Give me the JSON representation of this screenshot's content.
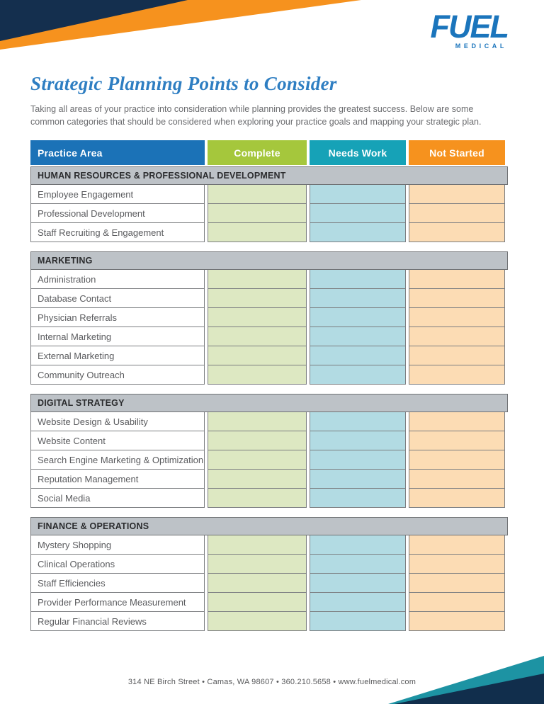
{
  "brand": {
    "logo_text": "FUEL",
    "logo_subtext": "MEDICAL"
  },
  "page": {
    "title": "Strategic Planning Points to Consider",
    "intro": "Taking all areas of your practice into consideration while planning provides the greatest success. Below are some common categories that should be considered when exploring your practice goals and mapping your strategic plan."
  },
  "table": {
    "columns": [
      "Practice Area",
      "Complete",
      "Needs Work",
      "Not Started"
    ],
    "sections": [
      {
        "title": "HUMAN RESOURCES & PROFESSIONAL DEVELOPMENT",
        "rows": [
          "Employee Engagement",
          "Professional Development",
          "Staff Recruiting & Engagement"
        ]
      },
      {
        "title": "MARKETING",
        "rows": [
          "Administration",
          "Database Contact",
          "Physician Referrals",
          "Internal Marketing",
          "External Marketing",
          "Community Outreach"
        ]
      },
      {
        "title": "DIGITAL STRATEGY",
        "rows": [
          "Website Design & Usability",
          "Website Content",
          "Search Engine Marketing & Optimization",
          "Reputation Management",
          "Social Media"
        ]
      },
      {
        "title": "FINANCE & OPERATIONS",
        "rows": [
          "Mystery Shopping",
          "Clinical Operations",
          "Staff Efficiencies",
          "Provider Performance Measurement",
          "Regular Financial Reviews"
        ]
      }
    ]
  },
  "footer": {
    "text": "314 NE Birch Street • Camas, WA 98607 • 360.210.5658 • www.fuelmedical.com"
  },
  "colors": {
    "brand_blue": "#1b75bc",
    "title_blue": "#2e7ec2",
    "header_blue": "#1b72b7",
    "header_green": "#a5c73c",
    "header_teal": "#16a2b7",
    "header_orange": "#f6921e",
    "section_gray": "#bdc2c7",
    "cell_green": "#dde8c2",
    "cell_blue": "#b2dbe3",
    "cell_orange": "#fcdcb4",
    "deco_navy": "#142f4e",
    "deco_orange": "#f6921e",
    "deco_teal": "#1d93a3"
  }
}
